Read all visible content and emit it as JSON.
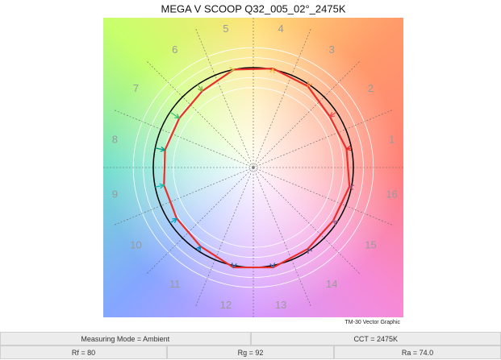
{
  "chart_data": {
    "type": "vector",
    "title": "MEGA V SCOOP Q32_005_02°_2475K",
    "categories": [
      "1",
      "2",
      "3",
      "4",
      "5",
      "6",
      "7",
      "8",
      "9",
      "10",
      "11",
      "12",
      "13",
      "14",
      "15",
      "16"
    ],
    "values": [
      0.95,
      0.92,
      0.98,
      1.01,
      1.0,
      0.92,
      0.89,
      0.9,
      0.91,
      0.92,
      0.95,
      1.02,
      1.02,
      0.98,
      0.96,
      0.98
    ],
    "color": "#e8302a",
    "footnote": "TM-30 Vector Graphic"
  },
  "table": {
    "rows": [
      [
        "Measuring Mode = Ambient",
        "CCT = 2475K"
      ],
      [
        "Rf = 80",
        "Rg = 92",
        "Ra = 74.0"
      ]
    ]
  }
}
